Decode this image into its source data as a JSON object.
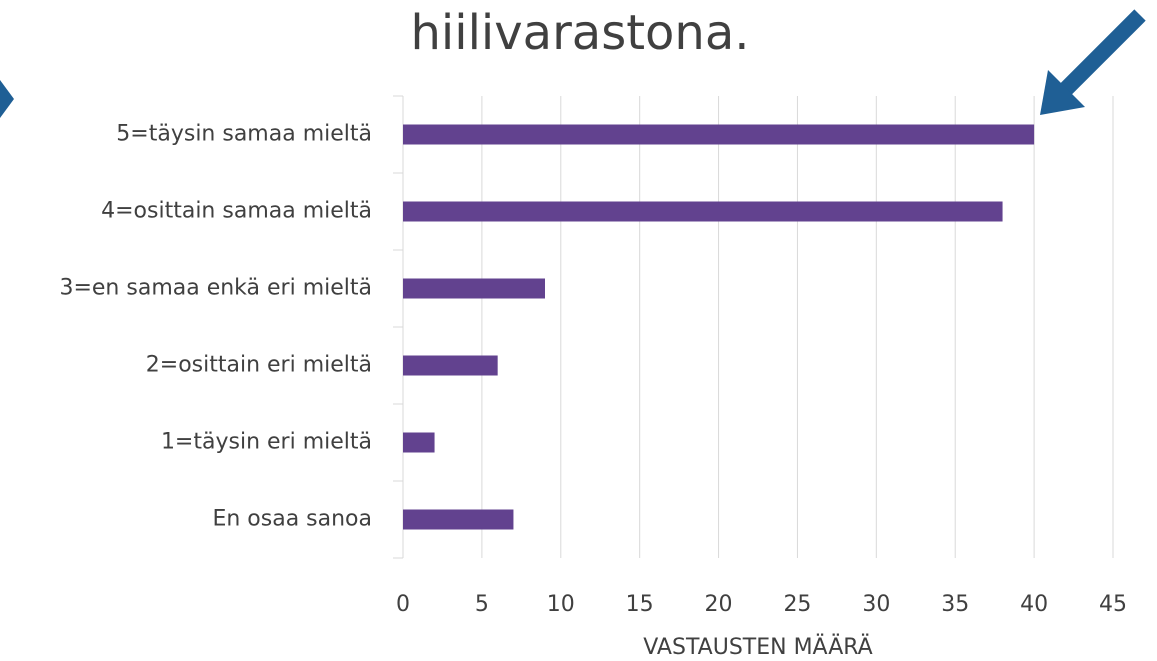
{
  "chart_data": {
    "type": "bar",
    "orientation": "horizontal",
    "title": "hiilivarastona.",
    "categories": [
      "5=täysin samaa mieltä",
      "4=osittain samaa mieltä",
      "3=en samaa enkä eri mieltä",
      "2=osittain eri mieltä",
      "1=täysin eri mieltä",
      "En osaa sanoa"
    ],
    "values": [
      40,
      38,
      9,
      6,
      2,
      7
    ],
    "color": "#62428f",
    "xlabel": "VASTAUSTEN MÄÄRÄ",
    "xlim": [
      0,
      45
    ],
    "xticks": [
      0,
      5,
      10,
      15,
      20,
      25,
      30,
      35,
      40,
      45
    ],
    "grid": true
  }
}
